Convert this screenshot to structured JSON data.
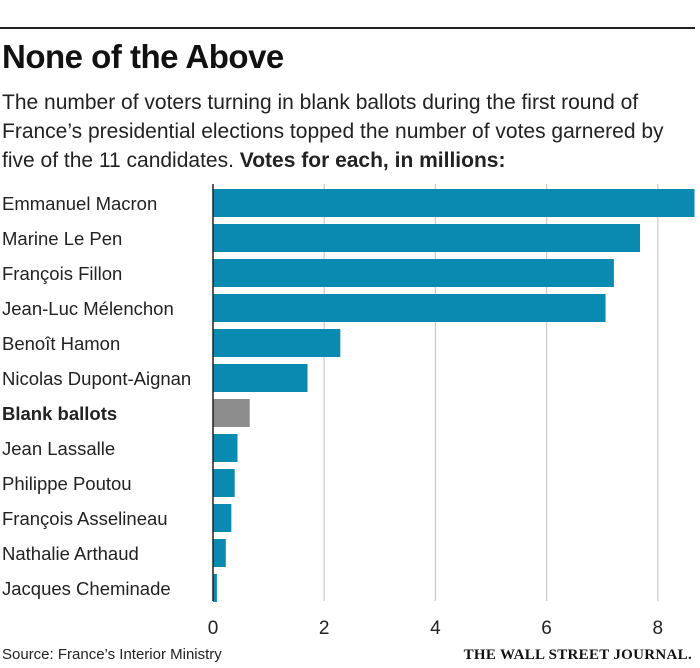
{
  "header": {
    "title": "None of the Above",
    "subtitle": "The number of voters turning in blank ballots during the first round of France’s presidential elections topped the number of votes garnered by five of the 11 candidates.",
    "subtitle_bold": "Votes for each, in millions:"
  },
  "footer": {
    "source": "Source: France’s Interior Ministry",
    "brand": "THE WALL STREET JOURNAL."
  },
  "colors": {
    "bar": "#0a8ab0",
    "highlight": "#8c8c8c",
    "grid": "#cccccc",
    "axis": "#222222"
  },
  "chart_data": {
    "type": "bar",
    "orientation": "horizontal",
    "title": "None of the Above",
    "xlabel": "",
    "ylabel": "",
    "xlim": [
      0,
      8.65
    ],
    "xticks": [
      0,
      2,
      4,
      6,
      8
    ],
    "grid": true,
    "categories": [
      "Emmanuel Macron",
      "Marine Le Pen",
      "François Fillon",
      "Jean-Luc Mélenchon",
      "Benoît Hamon",
      "Nicolas Dupont-Aignan",
      "Blank ballots",
      "Jean Lassalle",
      "Philippe Poutou",
      "François Asselineau",
      "Nathalie Arthaud",
      "Jacques Cheminade"
    ],
    "values": [
      8.66,
      7.68,
      7.21,
      7.06,
      2.29,
      1.7,
      0.66,
      0.44,
      0.39,
      0.33,
      0.23,
      0.07
    ],
    "highlight": [
      "Blank ballots"
    ]
  }
}
